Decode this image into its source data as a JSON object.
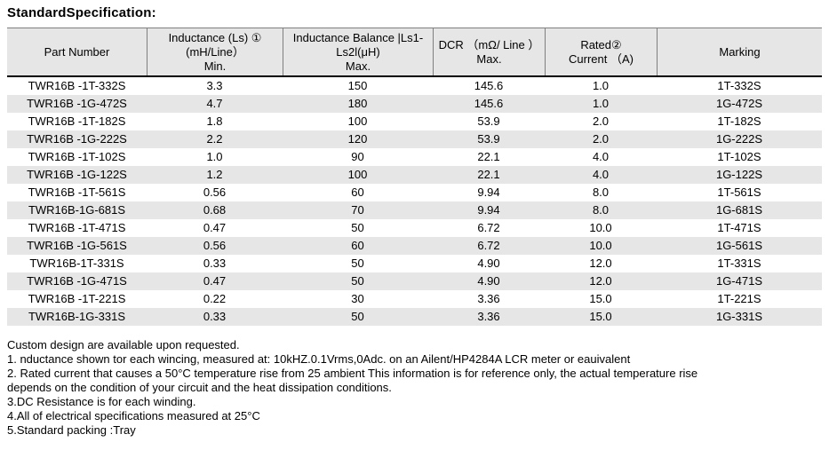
{
  "title": "StandardSpecification:",
  "colors": {
    "header_bg": "#e6e6e6",
    "stripe_bg": "#e6e6e6",
    "header_divider": "#7f7f7f",
    "header_underline": "#000000"
  },
  "table": {
    "columns": [
      {
        "name": "part-number",
        "lines": [
          "Part Number"
        ]
      },
      {
        "name": "inductance",
        "lines": [
          "Inductance (Ls) ①",
          "(mH/Line）",
          "Min."
        ]
      },
      {
        "name": "inductance-balance",
        "lines": [
          "Inductance Balance |Ls1-",
          "Ls2l(μH)",
          "Max."
        ]
      },
      {
        "name": "dcr",
        "lines": [
          "DCR （mΩ/ Line ）",
          "Max."
        ]
      },
      {
        "name": "rated-current",
        "lines": [
          "Rated②",
          "Current （A)"
        ]
      },
      {
        "name": "marking",
        "lines": [
          "Marking"
        ]
      }
    ],
    "rows": [
      [
        "TWR16B -1T-332S",
        "3.3",
        "150",
        "145.6",
        "1.0",
        "1T-332S"
      ],
      [
        "TWR16B -1G-472S",
        "4.7",
        "180",
        "145.6",
        "1.0",
        "1G-472S"
      ],
      [
        "TWR16B -1T-182S",
        "1.8",
        "100",
        "53.9",
        "2.0",
        "1T-182S"
      ],
      [
        "TWR16B -1G-222S",
        "2.2",
        "120",
        "53.9",
        "2.0",
        "1G-222S"
      ],
      [
        "TWR16B -1T-102S",
        "1.0",
        "90",
        "22.1",
        "4.0",
        "1T-102S"
      ],
      [
        "TWR16B -1G-122S",
        "1.2",
        "100",
        "22.1",
        "4.0",
        "1G-122S"
      ],
      [
        "TWR16B -1T-561S",
        "0.56",
        "60",
        "9.94",
        "8.0",
        "1T-561S"
      ],
      [
        "TWR16B-1G-681S",
        "0.68",
        "70",
        "9.94",
        "8.0",
        "1G-681S"
      ],
      [
        "TWR16B -1T-471S",
        "0.47",
        "50",
        "6.72",
        "10.0",
        "1T-471S"
      ],
      [
        "TWR16B -1G-561S",
        "0.56",
        "60",
        "6.72",
        "10.0",
        "1G-561S"
      ],
      [
        "TWR16B-1T-331S",
        "0.33",
        "50",
        "4.90",
        "12.0",
        "1T-331S"
      ],
      [
        "TWR16B -1G-471S",
        "0.47",
        "50",
        "4.90",
        "12.0",
        "1G-471S"
      ],
      [
        "TWR16B -1T-221S",
        "0.22",
        "30",
        "3.36",
        "15.0",
        "1T-221S"
      ],
      [
        "TWR16B-1G-331S",
        "0.33",
        "50",
        "3.36",
        "15.0",
        "1G-331S"
      ]
    ]
  },
  "notes": [
    "Custom design are available upon requested.",
    "1. nductance shown tor each wincing, measured at: 10kHZ.0.1Vrms,0Adc. on an Ailent/HP4284A LCR meter or eauivalent",
    "2. Rated current that causes a 50°C temperature rise from 25 ambient This information is for reference only, the actual temperature rise",
    "depends on the condition of your circuit and the heat dissipation conditions.",
    "3.DC Resistance is for each winding.",
    "4.All of electrical specifications measured at 25°C",
    "5.Standard packing :Tray"
  ]
}
